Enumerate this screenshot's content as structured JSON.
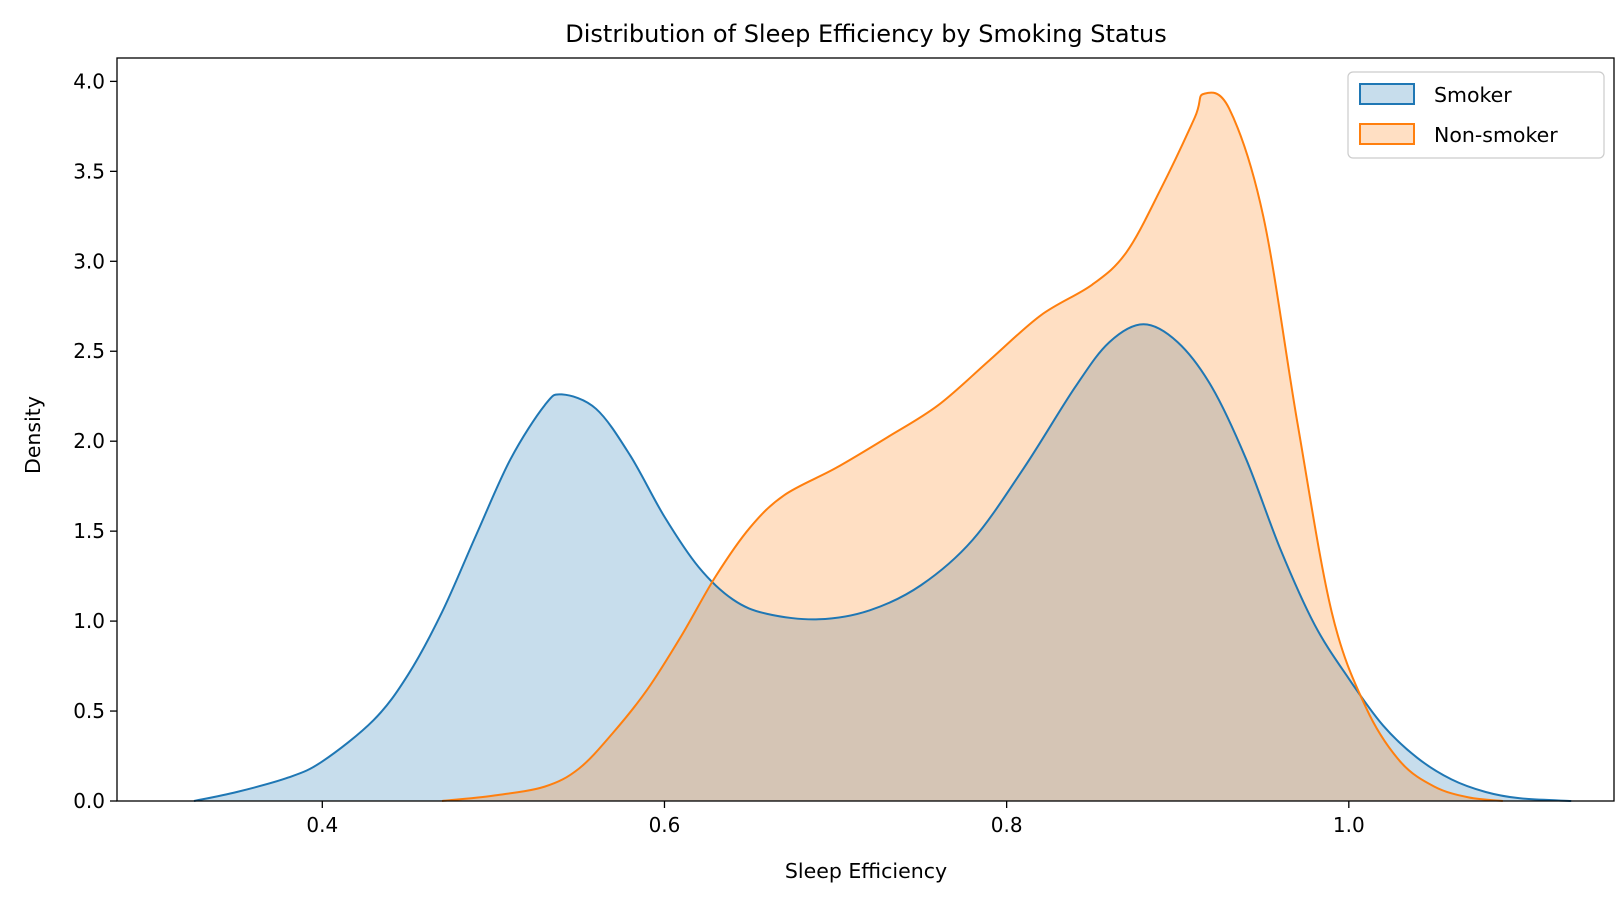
{
  "chart_data": {
    "type": "area",
    "title": "Distribution of Sleep Efficiency by Smoking Status",
    "xlabel": "Sleep Efficiency",
    "ylabel": "Density",
    "xlim": [
      0.28,
      1.155
    ],
    "ylim": [
      0,
      4.13
    ],
    "xticks": [
      0.4,
      0.6,
      0.8,
      1.0
    ],
    "xtick_labels": [
      "0.4",
      "0.6",
      "0.8",
      "1.0"
    ],
    "yticks": [
      0,
      0.5,
      1.0,
      1.5,
      2.0,
      2.5,
      3.0,
      3.5,
      4.0
    ],
    "ytick_labels": [
      "0.0",
      "0.5",
      "1.0",
      "1.5",
      "2.0",
      "2.5",
      "3.0",
      "3.5",
      "4.0"
    ],
    "grid": false,
    "legend_position": "top-right",
    "series": [
      {
        "name": "Smoker",
        "color": "#1f77b4",
        "points": [
          [
            0.325,
            0.0
          ],
          [
            0.35,
            0.05
          ],
          [
            0.38,
            0.13
          ],
          [
            0.4,
            0.22
          ],
          [
            0.43,
            0.45
          ],
          [
            0.45,
            0.7
          ],
          [
            0.47,
            1.05
          ],
          [
            0.49,
            1.48
          ],
          [
            0.51,
            1.9
          ],
          [
            0.53,
            2.2
          ],
          [
            0.54,
            2.26
          ],
          [
            0.56,
            2.18
          ],
          [
            0.58,
            1.92
          ],
          [
            0.6,
            1.58
          ],
          [
            0.62,
            1.3
          ],
          [
            0.64,
            1.12
          ],
          [
            0.66,
            1.04
          ],
          [
            0.69,
            1.01
          ],
          [
            0.72,
            1.06
          ],
          [
            0.75,
            1.2
          ],
          [
            0.78,
            1.45
          ],
          [
            0.81,
            1.85
          ],
          [
            0.84,
            2.3
          ],
          [
            0.86,
            2.55
          ],
          [
            0.88,
            2.65
          ],
          [
            0.9,
            2.55
          ],
          [
            0.92,
            2.3
          ],
          [
            0.94,
            1.9
          ],
          [
            0.96,
            1.4
          ],
          [
            0.98,
            0.98
          ],
          [
            1.0,
            0.68
          ],
          [
            1.02,
            0.42
          ],
          [
            1.04,
            0.24
          ],
          [
            1.06,
            0.12
          ],
          [
            1.08,
            0.05
          ],
          [
            1.1,
            0.015
          ],
          [
            1.13,
            0.0
          ]
        ]
      },
      {
        "name": "Non-smoker",
        "color": "#ff7f0e",
        "points": [
          [
            0.47,
            0.0
          ],
          [
            0.5,
            0.03
          ],
          [
            0.53,
            0.08
          ],
          [
            0.55,
            0.18
          ],
          [
            0.57,
            0.38
          ],
          [
            0.59,
            0.62
          ],
          [
            0.61,
            0.92
          ],
          [
            0.63,
            1.25
          ],
          [
            0.65,
            1.52
          ],
          [
            0.67,
            1.7
          ],
          [
            0.7,
            1.85
          ],
          [
            0.73,
            2.02
          ],
          [
            0.76,
            2.2
          ],
          [
            0.79,
            2.45
          ],
          [
            0.82,
            2.7
          ],
          [
            0.85,
            2.87
          ],
          [
            0.87,
            3.05
          ],
          [
            0.89,
            3.4
          ],
          [
            0.91,
            3.8
          ],
          [
            0.915,
            3.93
          ],
          [
            0.93,
            3.85
          ],
          [
            0.95,
            3.25
          ],
          [
            0.97,
            2.1
          ],
          [
            0.99,
            1.05
          ],
          [
            1.01,
            0.52
          ],
          [
            1.03,
            0.22
          ],
          [
            1.05,
            0.08
          ],
          [
            1.07,
            0.02
          ],
          [
            1.09,
            0.0
          ]
        ]
      }
    ]
  }
}
